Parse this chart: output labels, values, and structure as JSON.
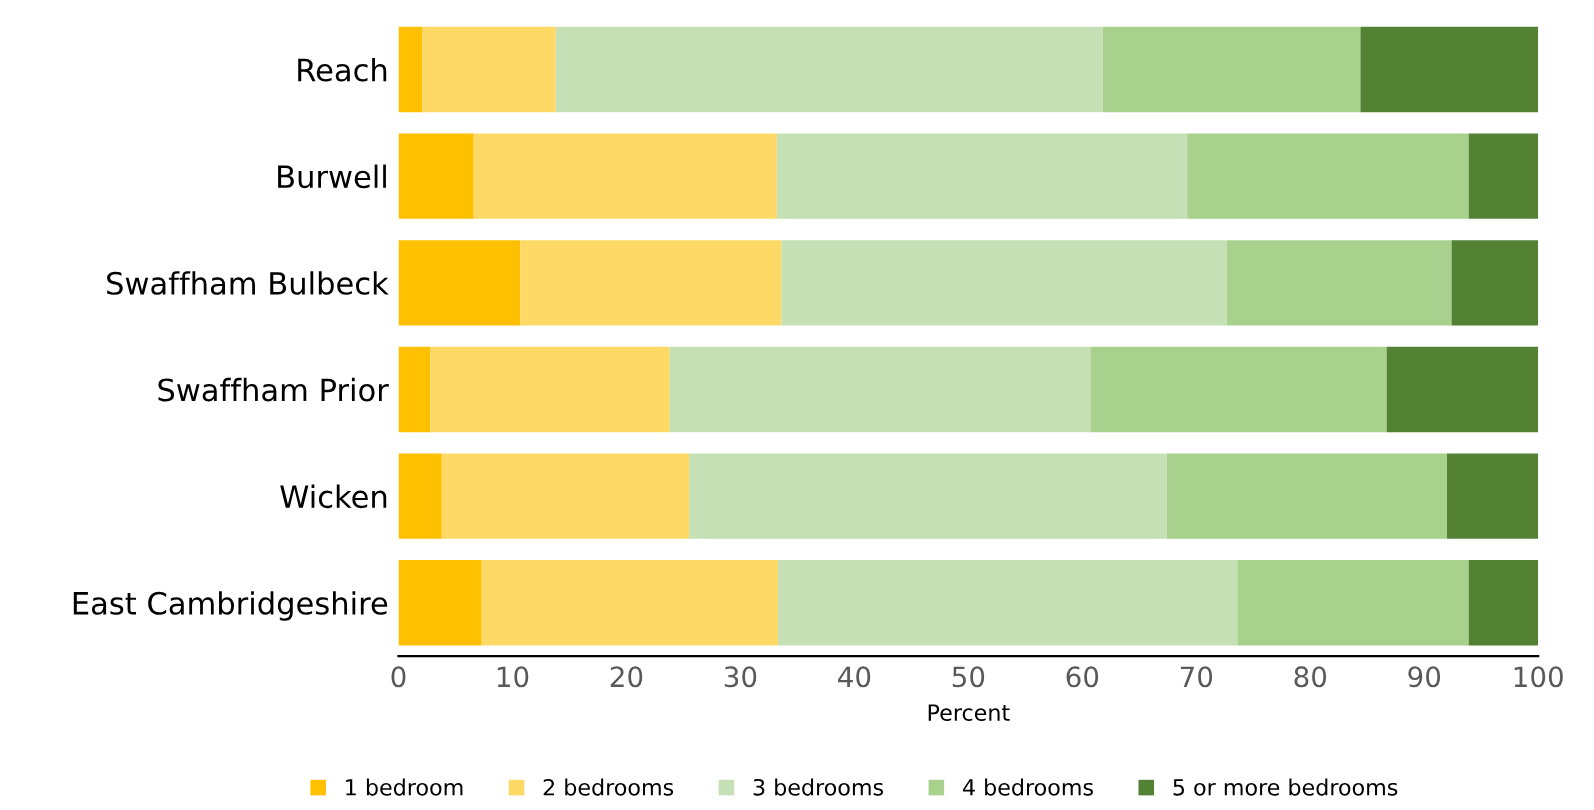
{
  "chart_data": {
    "type": "bar",
    "orientation": "horizontal",
    "stacked": true,
    "xlabel": "Percent",
    "categories": [
      "Reach",
      "Burwell",
      "Swaffham Bulbeck",
      "Swaffham Prior",
      "Wicken",
      "East Cambridgeshire"
    ],
    "series": [
      {
        "name": "1 bedroom",
        "color": "#ffc000",
        "values": [
          2.1,
          6.6,
          10.7,
          2.8,
          3.8,
          7.3
        ]
      },
      {
        "name": "2 bedrooms",
        "color": "#ffd966",
        "values": [
          11.7,
          26.6,
          22.9,
          21.0,
          21.7,
          26.0
        ]
      },
      {
        "name": "3 bedrooms",
        "color": "#c5e0b4",
        "values": [
          48.0,
          36.0,
          39.1,
          36.9,
          41.9,
          40.3
        ]
      },
      {
        "name": "4 bedrooms",
        "color": "#a9d18e",
        "values": [
          22.6,
          24.7,
          19.7,
          26.0,
          24.6,
          20.3
        ]
      },
      {
        "name": "5 or more bedrooms",
        "color": "#548235",
        "values": [
          15.6,
          6.1,
          7.6,
          13.3,
          8.0,
          6.1
        ]
      }
    ],
    "xlim": [
      0,
      100
    ],
    "xticks": [
      0,
      10,
      20,
      30,
      40,
      50,
      60,
      70,
      80,
      90,
      100
    ],
    "grid": false,
    "legend": "bottom"
  }
}
